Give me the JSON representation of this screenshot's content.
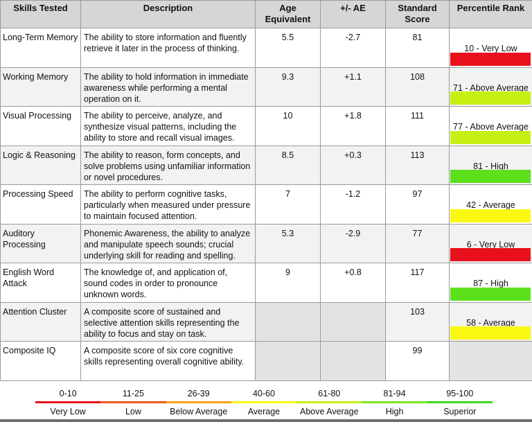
{
  "table": {
    "headers": {
      "skill": "Skills Tested",
      "description": "Description",
      "age_equivalent": "Age Equivalent",
      "ae": "+/- AE",
      "standard_score": "Standard Score",
      "percentile": "Percentile Rank"
    },
    "rows": [
      {
        "skill": "Long-Term Memory",
        "description": "The ability to store information and fluently retrieve it later in the process of thinking.",
        "age": "5.5",
        "ae": "-2.7",
        "score": "81",
        "percentile": "10 - Very Low",
        "color": "#e8101c"
      },
      {
        "skill": "Working Memory",
        "description": "The ability to hold information in immediate awareness while performing a mental operation on it.",
        "age": "9.3",
        "ae": "+1.1",
        "score": "108",
        "percentile": "71 - Above Average",
        "color": "#c6f014"
      },
      {
        "skill": "Visual Processing",
        "description": "The ability to perceive, analyze, and synthesize visual patterns, including the ability to store and recall visual images.",
        "age": "10",
        "ae": "+1.8",
        "score": "111",
        "percentile": "77 - Above Average",
        "color": "#c6f014"
      },
      {
        "skill": "Logic & Reasoning",
        "description": "The ability to reason, form concepts, and solve problems using unfamiliar information or novel procedures.",
        "age": "8.5",
        "ae": "+0.3",
        "score": "113",
        "percentile": "81 - High",
        "color": "#5de01c"
      },
      {
        "skill": "Processing Speed",
        "description": "The ability to perform cognitive tasks, particularly when measured under pressure to maintain focused attention.",
        "age": "7",
        "ae": "-1.2",
        "score": "97",
        "percentile": "42 - Average",
        "color": "#fbf811"
      },
      {
        "skill": "Auditory Processing",
        "description": "Phonemic Awareness, the ability to analyze and manipulate speech sounds; crucial underlying skill for reading and spelling.",
        "age": "5.3",
        "ae": "-2.9",
        "score": "77",
        "percentile": "6 - Very Low",
        "color": "#e8101c"
      },
      {
        "skill": "English Word Attack",
        "description": "The knowledge of, and application of, sound codes in order to pronounce unknown words.",
        "age": "9",
        "ae": "+0.8",
        "score": "117",
        "percentile": "87 - High",
        "color": "#5de01c"
      },
      {
        "skill": "Attention Cluster",
        "description": "A composite score of sustained and selective attention skills representing the ability to focus and stay on task.",
        "age": "",
        "ae": "",
        "score": "103",
        "percentile": "58 - Average",
        "color": "#fbf811"
      },
      {
        "skill": "Composite IQ",
        "description": "A composite score of six core cognitive skills representing overall cognitive ability.",
        "age": "",
        "ae": "",
        "score": "99",
        "percentile": "",
        "color": ""
      }
    ]
  },
  "legend": [
    {
      "range": "0-10",
      "label": "Very Low",
      "color": "#e8101c"
    },
    {
      "range": "11-25",
      "label": "Low",
      "color": "#ee5a1e"
    },
    {
      "range": "26-39",
      "label": "Below Average",
      "color": "#f6a21c"
    },
    {
      "range": "40-60",
      "label": "Average",
      "color": "#fbf811"
    },
    {
      "range": "61-80",
      "label": "Above Average",
      "color": "#c6f014"
    },
    {
      "range": "81-94",
      "label": "High",
      "color": "#7de61c"
    },
    {
      "range": "95-100",
      "label": "Superior",
      "color": "#3fd81e"
    }
  ]
}
